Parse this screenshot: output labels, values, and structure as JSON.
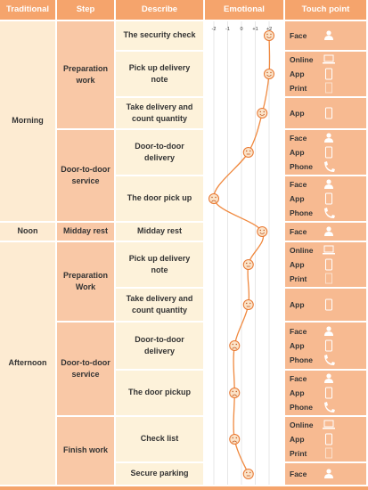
{
  "header": [
    "Traditional",
    "Step",
    "Describe",
    "Emotional",
    "Touch point"
  ],
  "emotional_scale": {
    "xlim": [
      -2,
      2
    ],
    "ticks": [
      -2,
      -1,
      0,
      {
        "value": 1,
        "label": "+1"
      },
      {
        "value": 2,
        "label": "+2"
      }
    ]
  },
  "periods": [
    {
      "label": "Morning",
      "steps": [
        {
          "label": "Preparation work",
          "items": [
            {
              "describe": "The security check",
              "touch": [
                "Face"
              ],
              "emotion": 2
            },
            {
              "describe": "Pick up delivery note",
              "touch": [
                "Online",
                "App",
                "Print"
              ],
              "emotion": 2
            },
            {
              "describe": "Take delivery and count quantity",
              "touch": [
                "App"
              ],
              "emotion": 1.5
            }
          ]
        },
        {
          "label": "Door-to-door service",
          "items": [
            {
              "describe": "Door-to-door delivery",
              "touch": [
                "Face",
                "App",
                "Phone"
              ],
              "emotion": 0.5
            },
            {
              "describe": "The door pick up",
              "touch": [
                "Face",
                "App",
                "Phone"
              ],
              "emotion": -2
            }
          ]
        }
      ]
    },
    {
      "label": "Noon",
      "steps": [
        {
          "label": "Midday rest",
          "items": [
            {
              "describe": "Midday rest",
              "touch": [
                "Face"
              ],
              "emotion": 1.5
            }
          ]
        }
      ]
    },
    {
      "label": "Afternoon",
      "steps": [
        {
          "label": "Preparation Work",
          "items": [
            {
              "describe": "Pick up delivery note",
              "touch": [
                "Online",
                "App",
                "Print"
              ],
              "emotion": 0.5
            },
            {
              "describe": "Take delivery and count quantity",
              "touch": [
                "App"
              ],
              "emotion": 0.5
            }
          ]
        },
        {
          "label": "Door-to-door service",
          "items": [
            {
              "describe": "Door-to-door delivery",
              "touch": [
                "Face",
                "App",
                "Phone"
              ],
              "emotion": -0.5
            },
            {
              "describe": "The door pickup",
              "touch": [
                "Face",
                "App",
                "Phone"
              ],
              "emotion": -0.5
            }
          ]
        },
        {
          "label": "Finish work",
          "items": [
            {
              "describe": "Check list",
              "touch": [
                "Online",
                "App",
                "Print"
              ],
              "emotion": -0.5
            },
            {
              "describe": "Secure parking",
              "touch": [
                "Face"
              ],
              "emotion": 0.5
            }
          ]
        }
      ]
    }
  ]
}
